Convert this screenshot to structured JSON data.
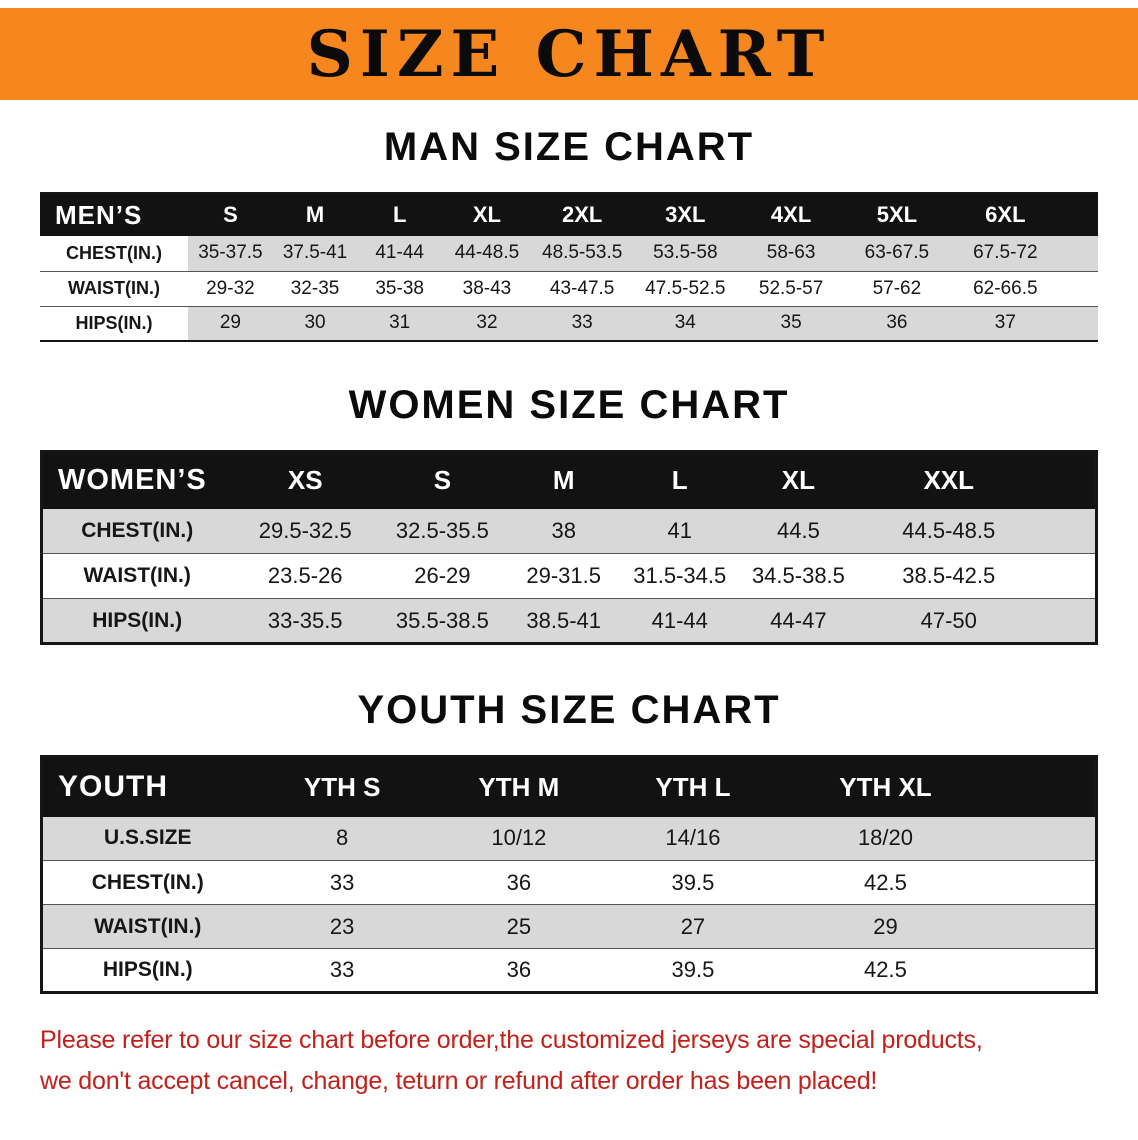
{
  "banner": {
    "title": "SIZE CHART"
  },
  "sections": [
    {
      "heading": "MAN SIZE CHART",
      "table": {
        "header_label": "MEN’S",
        "columns": [
          "S",
          "M",
          "L",
          "XL",
          "2XL",
          "3XL",
          "4XL",
          "5XL",
          "6XL"
        ],
        "rows": [
          {
            "label": "CHEST(IN.)",
            "values": [
              "35-37.5",
              "37.5-41",
              "41-44",
              "44-48.5",
              "48.5-53.5",
              "53.5-58",
              "58-63",
              "63-67.5",
              "67.5-72"
            ]
          },
          {
            "label": "WAIST(IN.)",
            "values": [
              "29-32",
              "32-35",
              "35-38",
              "38-43",
              "43-47.5",
              "47.5-52.5",
              "52.5-57",
              "57-62",
              "62-66.5"
            ]
          },
          {
            "label": "HIPS(IN.)",
            "values": [
              "29",
              "30",
              "31",
              "32",
              "33",
              "34",
              "35",
              "36",
              "37"
            ]
          }
        ]
      }
    },
    {
      "heading": "WOMEN SIZE CHART",
      "table": {
        "header_label": "WOMEN’S",
        "columns": [
          "XS",
          "S",
          "M",
          "L",
          "XL",
          "XXL"
        ],
        "rows": [
          {
            "label": "CHEST(IN.)",
            "values": [
              "29.5-32.5",
              "32.5-35.5",
              "38",
              "41",
              "44.5",
              "44.5-48.5"
            ]
          },
          {
            "label": "WAIST(IN.)",
            "values": [
              "23.5-26",
              "26-29",
              "29-31.5",
              "31.5-34.5",
              "34.5-38.5",
              "38.5-42.5"
            ]
          },
          {
            "label": "HIPS(IN.)",
            "values": [
              "33-35.5",
              "35.5-38.5",
              "38.5-41",
              "41-44",
              "44-47",
              "47-50"
            ]
          }
        ]
      }
    },
    {
      "heading": "YOUTH SIZE CHART",
      "table": {
        "header_label": "YOUTH",
        "columns": [
          "YTH S",
          "YTH M",
          "YTH L",
          "YTH XL"
        ],
        "rows": [
          {
            "label": "U.S.SIZE",
            "values": [
              "8",
              "10/12",
              "14/16",
              "18/20"
            ]
          },
          {
            "label": "CHEST(IN.)",
            "values": [
              "33",
              "36",
              "39.5",
              "42.5"
            ]
          },
          {
            "label": "WAIST(IN.)",
            "values": [
              "23",
              "25",
              "27",
              "29"
            ]
          },
          {
            "label": "HIPS(IN.)",
            "values": [
              "33",
              "36",
              "39.5",
              "42.5"
            ]
          }
        ]
      }
    }
  ],
  "footer": {
    "lines": [
      "Please refer to our size chart before order,the customized jerseys are special products,",
      "we don't accept cancel, change, teturn or refund after order has been placed!"
    ],
    "text_color": "#C2201A"
  },
  "colors": {
    "banner_bg": "#F6861E",
    "table_header_bg": "#121212",
    "row_shade": "#d8d8d8"
  }
}
